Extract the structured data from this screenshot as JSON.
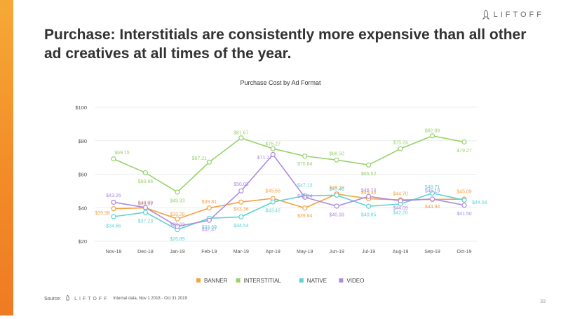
{
  "brand": {
    "name": "LIFTOFF",
    "icon": "rocket-icon"
  },
  "headline": "Purchase: Interstitials are consistently more expensive than all other ad creatives at all times of the year.",
  "footer": {
    "source_label": "Source:",
    "brand": "LIFTOFF",
    "note": "Internal data, Nov 1 2018 - Oct 31 2019"
  },
  "page_number": "33",
  "colors": {
    "accent": "#f39a2e",
    "banner": "#f5a243",
    "interstitial": "#97d36b",
    "native": "#5fd3d3",
    "video": "#ad8be0"
  },
  "chart_data": {
    "type": "line",
    "title": "Purchase Cost by Ad Format",
    "xlabel": "",
    "ylabel": "",
    "categories": [
      "Nov-18",
      "Dec-18",
      "Jan-19",
      "Feb-19",
      "Mar-19",
      "Apr-19",
      "May-19",
      "Jun-19",
      "Jul-19",
      "Aug-19",
      "Sep-19",
      "Oct-19"
    ],
    "y_ticks": [
      "$20",
      "$40",
      "$60",
      "$80",
      "$100"
    ],
    "ylim": [
      20,
      100
    ],
    "legend_position": "bottom",
    "series": [
      {
        "name": "BANNER",
        "color": "#f5a243",
        "values": [
          39.38,
          39.91,
          33.28,
          39.81,
          43.36,
          45.55,
          39.84,
          48.2,
          45.34,
          44.7,
          44.94,
          45.09
        ],
        "labels": [
          "$39.38",
          "$39.91",
          "$33.28",
          "$39.81",
          "$43.36",
          "$45.55",
          "$39.84",
          "$48.20",
          "$45.34",
          "$44.70",
          "$44.94",
          "$45.09"
        ]
      },
      {
        "name": "INTERSTITIAL",
        "color": "#97d36b",
        "values": [
          69.15,
          60.86,
          49.33,
          67.21,
          81.67,
          75.27,
          70.84,
          68.5,
          65.52,
          75.24,
          82.89,
          79.27
        ],
        "labels": [
          "$69.15",
          "$60.86",
          "$49.33",
          "$67.21",
          "$81.67",
          "$75.27",
          "$70.84",
          "$68.50",
          "$65.52",
          "$75.24",
          "$82.89",
          "$79.27"
        ]
      },
      {
        "name": "NATIVE",
        "color": "#5fd3d3",
        "values": [
          34.66,
          37.23,
          26.89,
          33.69,
          34.54,
          43.42,
          47.13,
          47.46,
          40.85,
          42.2,
          48.71,
          44.54
        ],
        "labels": [
          "$34.66",
          "$37.23",
          "$26.89",
          "$33.69",
          "$34.54",
          "$43.42",
          "$47.13",
          "$47.46",
          "$40.85",
          "$42.20",
          "$48.71",
          "$44.54"
        ]
      },
      {
        "name": "VIDEO",
        "color": "#ad8be0",
        "values": [
          43.26,
          40.09,
          28.83,
          32.47,
          50.03,
          71.77,
          46.24,
          40.93,
          46.74,
          44.09,
          45.19,
          41.5
        ],
        "labels": [
          "$43.26",
          "$40.09",
          "$28.83",
          "$32.47",
          "$50.03",
          "$71.77",
          "$46.24",
          "$40.93",
          "$46.74",
          "$44.09",
          "$45.19",
          "$41.50"
        ]
      }
    ]
  }
}
